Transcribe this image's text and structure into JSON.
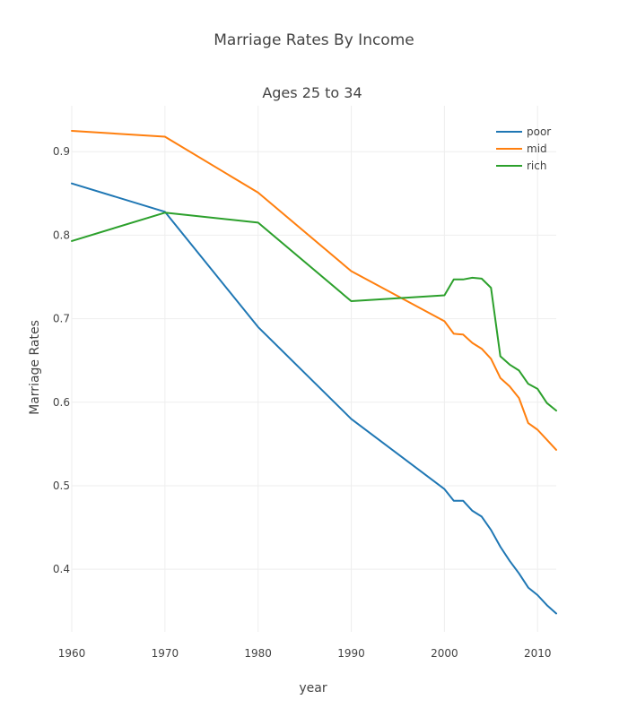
{
  "chart_data": {
    "type": "line",
    "title": "Marriage Rates By Income",
    "subtitle": "Ages 25 to 34",
    "xlabel": "year",
    "ylabel": "Marriage Rates",
    "xlim": [
      1960,
      2012
    ],
    "ylim": [
      0.325,
      0.955
    ],
    "x_ticks": [
      1960,
      1970,
      1980,
      1990,
      2000,
      2010
    ],
    "y_ticks": [
      0.4,
      0.5,
      0.6,
      0.7,
      0.8,
      0.9
    ],
    "grid": true,
    "legend_position": "top-right",
    "series": [
      {
        "name": "poor",
        "color": "#1f77b4",
        "points": [
          [
            1960,
            0.862
          ],
          [
            1970,
            0.828
          ],
          [
            1980,
            0.69
          ],
          [
            1990,
            0.58
          ],
          [
            2000,
            0.496
          ],
          [
            2001,
            0.482
          ],
          [
            2002,
            0.482
          ],
          [
            2003,
            0.47
          ],
          [
            2004,
            0.463
          ],
          [
            2005,
            0.447
          ],
          [
            2006,
            0.427
          ],
          [
            2007,
            0.41
          ],
          [
            2008,
            0.395
          ],
          [
            2009,
            0.378
          ],
          [
            2010,
            0.369
          ],
          [
            2011,
            0.357
          ],
          [
            2012,
            0.347
          ]
        ]
      },
      {
        "name": "mid",
        "color": "#ff7f0e",
        "points": [
          [
            1960,
            0.925
          ],
          [
            1970,
            0.918
          ],
          [
            1980,
            0.851
          ],
          [
            1990,
            0.757
          ],
          [
            2000,
            0.697
          ],
          [
            2001,
            0.682
          ],
          [
            2002,
            0.681
          ],
          [
            2003,
            0.671
          ],
          [
            2004,
            0.664
          ],
          [
            2005,
            0.652
          ],
          [
            2006,
            0.629
          ],
          [
            2007,
            0.619
          ],
          [
            2008,
            0.605
          ],
          [
            2009,
            0.575
          ],
          [
            2010,
            0.567
          ],
          [
            2011,
            0.555
          ],
          [
            2012,
            0.543
          ]
        ]
      },
      {
        "name": "rich",
        "color": "#2ca02c",
        "points": [
          [
            1960,
            0.793
          ],
          [
            1970,
            0.827
          ],
          [
            1980,
            0.815
          ],
          [
            1990,
            0.721
          ],
          [
            2000,
            0.728
          ],
          [
            2001,
            0.747
          ],
          [
            2002,
            0.747
          ],
          [
            2003,
            0.749
          ],
          [
            2004,
            0.748
          ],
          [
            2005,
            0.737
          ],
          [
            2006,
            0.655
          ],
          [
            2007,
            0.645
          ],
          [
            2008,
            0.638
          ],
          [
            2009,
            0.622
          ],
          [
            2010,
            0.616
          ],
          [
            2011,
            0.599
          ],
          [
            2012,
            0.59
          ]
        ]
      }
    ]
  }
}
